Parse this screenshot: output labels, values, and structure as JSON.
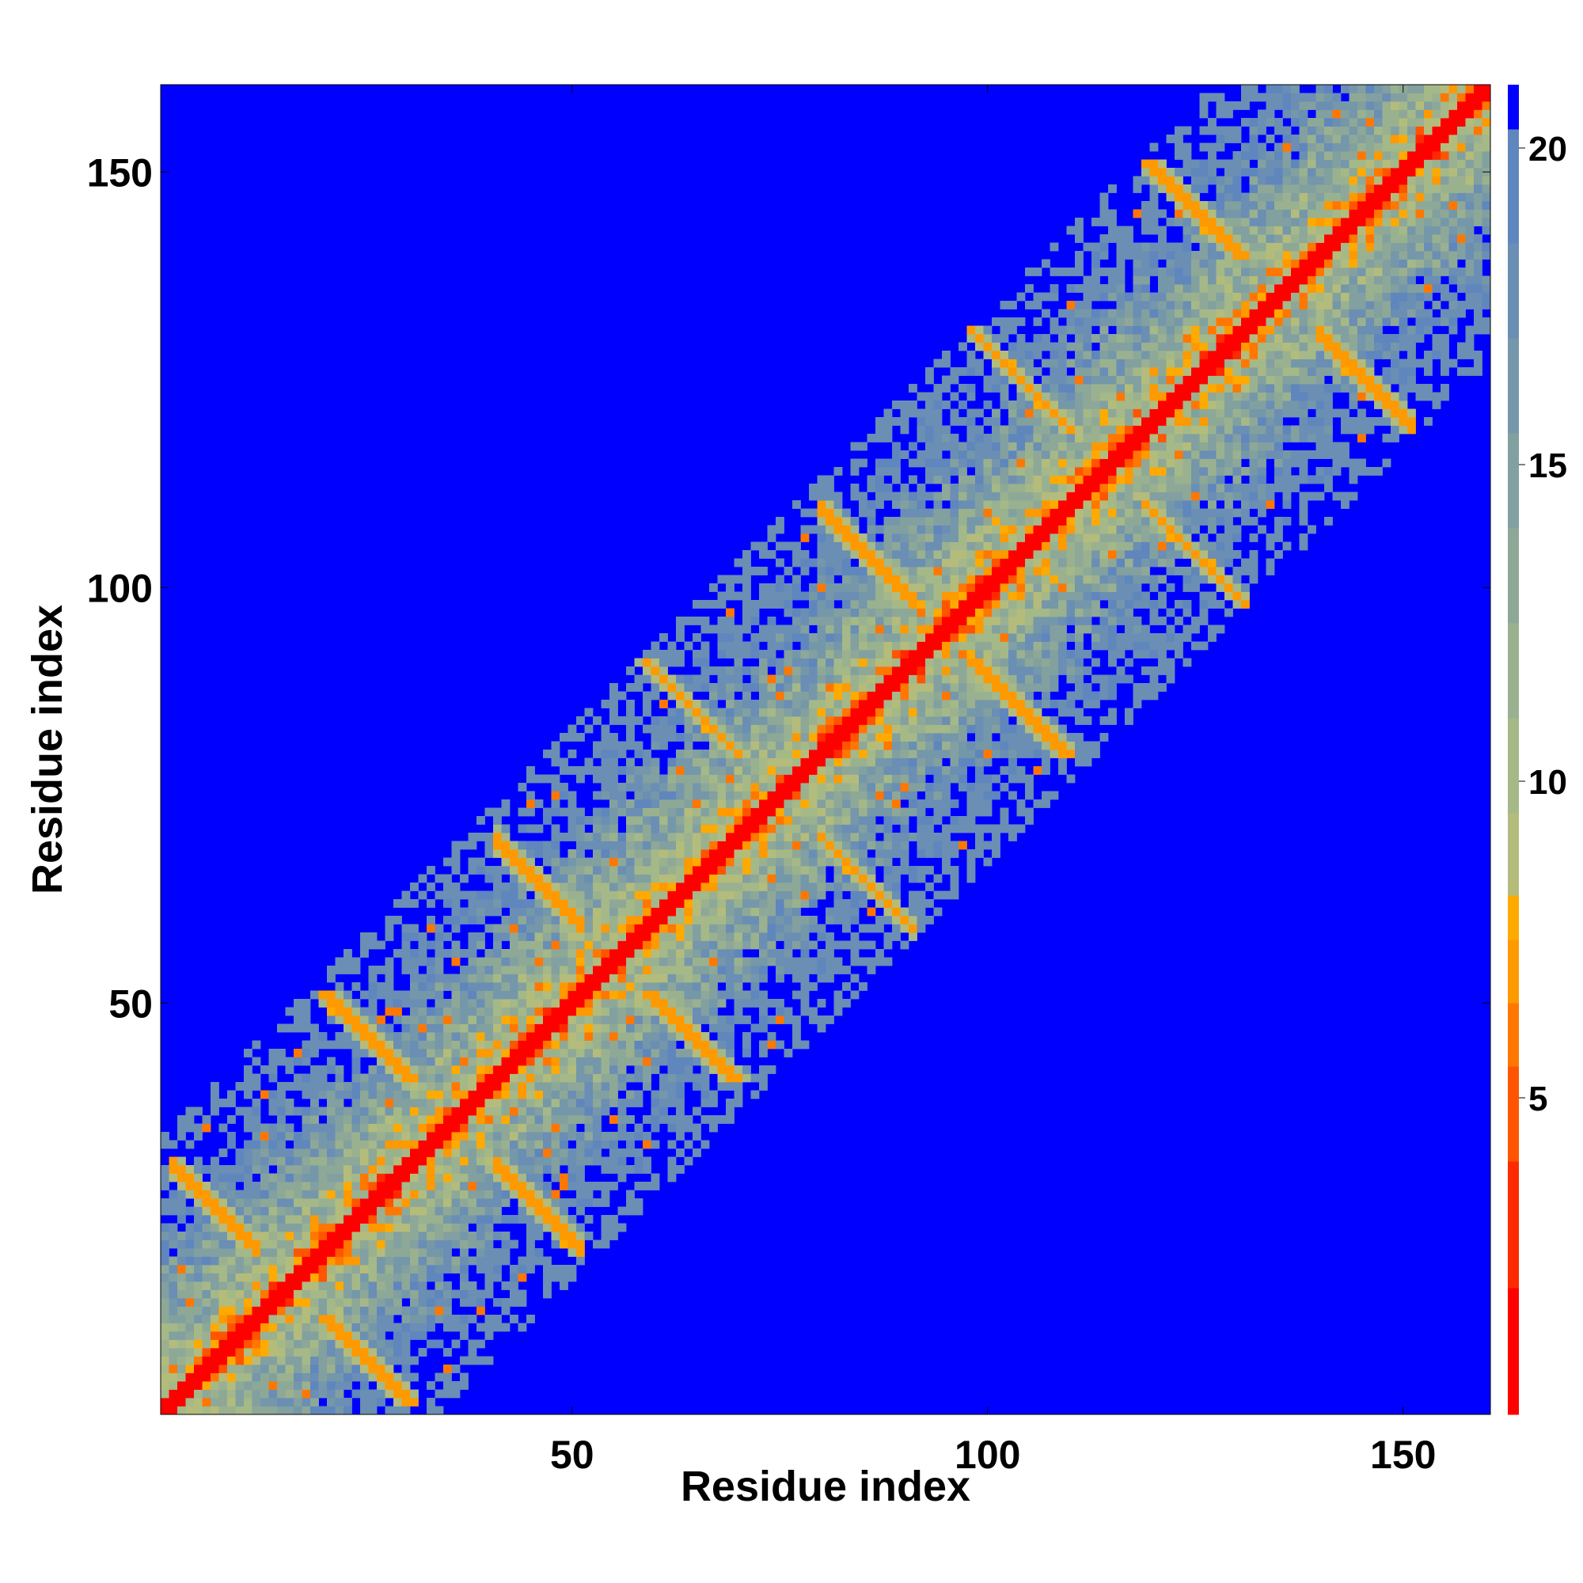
{
  "chart_data": {
    "type": "heatmap",
    "xlabel": "Residue index",
    "ylabel": "Residue index",
    "n": 160,
    "xlim": [
      1,
      160
    ],
    "ylim": [
      1,
      160
    ],
    "x_ticks": [
      50,
      100,
      150
    ],
    "y_ticks": [
      50,
      100,
      150
    ],
    "x_tick_labels": [
      "50",
      "100",
      "150"
    ],
    "y_tick_labels": [
      "50",
      "100",
      "150"
    ],
    "colorbar": {
      "range": [
        0,
        21
      ],
      "ticks": [
        5,
        10,
        15,
        20
      ],
      "tick_labels": [
        "5",
        "10",
        "15",
        "20"
      ],
      "bands": [
        {
          "max": 2,
          "color": "#ff0000"
        },
        {
          "max": 4,
          "color": "#ff2a00"
        },
        {
          "max": 5.5,
          "color": "#ff5500"
        },
        {
          "max": 6.5,
          "color": "#ff7700"
        },
        {
          "max": 7.5,
          "color": "#ff9900"
        },
        {
          "max": 8.2,
          "color": "#ffaa00"
        },
        {
          "max": 9.5,
          "color": "#b4bc7c"
        },
        {
          "max": 11,
          "color": "#a5b888"
        },
        {
          "max": 12.5,
          "color": "#9ab190"
        },
        {
          "max": 14,
          "color": "#8ea898"
        },
        {
          "max": 15.5,
          "color": "#82a0a0"
        },
        {
          "max": 17,
          "color": "#7597aa"
        },
        {
          "max": 18.5,
          "color": "#6a8eb4"
        },
        {
          "max": 20.3,
          "color": "#5f86bd"
        },
        {
          "max": 21,
          "color": "#0000ff"
        }
      ]
    },
    "diagonal_band_value": 1,
    "helix_segments": [
      [
        2,
        12
      ],
      [
        20,
        31
      ],
      [
        41,
        51
      ],
      [
        58,
        71
      ],
      [
        80,
        91
      ],
      [
        98,
        110
      ],
      [
        119,
        131
      ],
      [
        140,
        151
      ]
    ],
    "background_value": 21
  }
}
